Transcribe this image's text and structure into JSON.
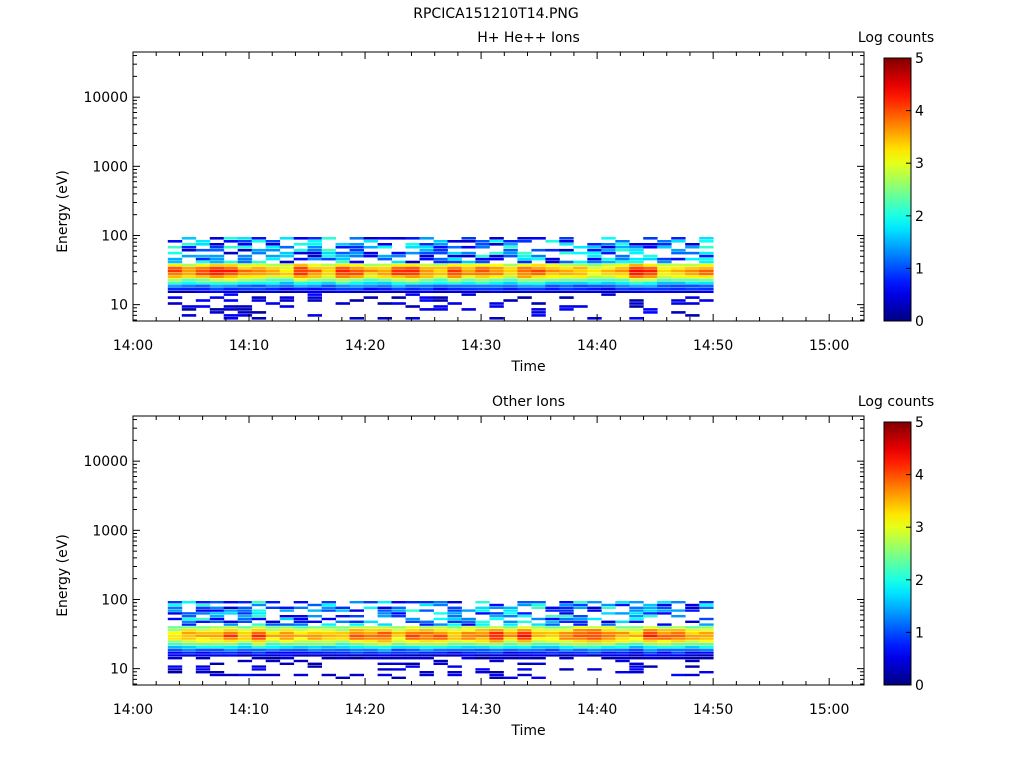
{
  "figure_title": "RPCICA151210T14.PNG",
  "chart_data": [
    {
      "type": "heatmap",
      "title": "H+ He++ Ions",
      "xlabel": "Time",
      "ylabel": "Energy (eV)",
      "y_scale": "log",
      "y_range_ev": [
        5.8,
        45000
      ],
      "x_range": [
        "14:00",
        "15:03"
      ],
      "x_tick_labels": [
        "14:00",
        "14:10",
        "14:20",
        "14:30",
        "14:40",
        "14:50",
        "15:00"
      ],
      "y_tick_labels": [
        "10",
        "100",
        "1000",
        "10000"
      ],
      "data_time_span": [
        "14:03",
        "14:50"
      ],
      "data_energy_span_ev": [
        6,
        95
      ],
      "peak_energy_ev": 30,
      "colorbar": {
        "label": "Log counts",
        "range": [
          0,
          5
        ],
        "ticks": [
          "0",
          "1",
          "2",
          "3",
          "4",
          "5"
        ],
        "colormap": "jet"
      },
      "grid": false
    },
    {
      "type": "heatmap",
      "title": "Other Ions",
      "xlabel": "Time",
      "ylabel": "Energy (eV)",
      "y_scale": "log",
      "y_range_ev": [
        5.8,
        45000
      ],
      "x_range": [
        "14:00",
        "15:03"
      ],
      "x_tick_labels": [
        "14:00",
        "14:10",
        "14:20",
        "14:30",
        "14:40",
        "14:50",
        "15:00"
      ],
      "y_tick_labels": [
        "10",
        "100",
        "1000",
        "10000"
      ],
      "data_time_span": [
        "14:03",
        "14:50"
      ],
      "data_energy_span_ev": [
        7,
        95
      ],
      "peak_energy_ev": 30,
      "colorbar": {
        "label": "Log counts",
        "range": [
          0,
          5
        ],
        "ticks": [
          "0",
          "1",
          "2",
          "3",
          "4",
          "5"
        ],
        "colormap": "jet"
      },
      "grid": false
    }
  ]
}
